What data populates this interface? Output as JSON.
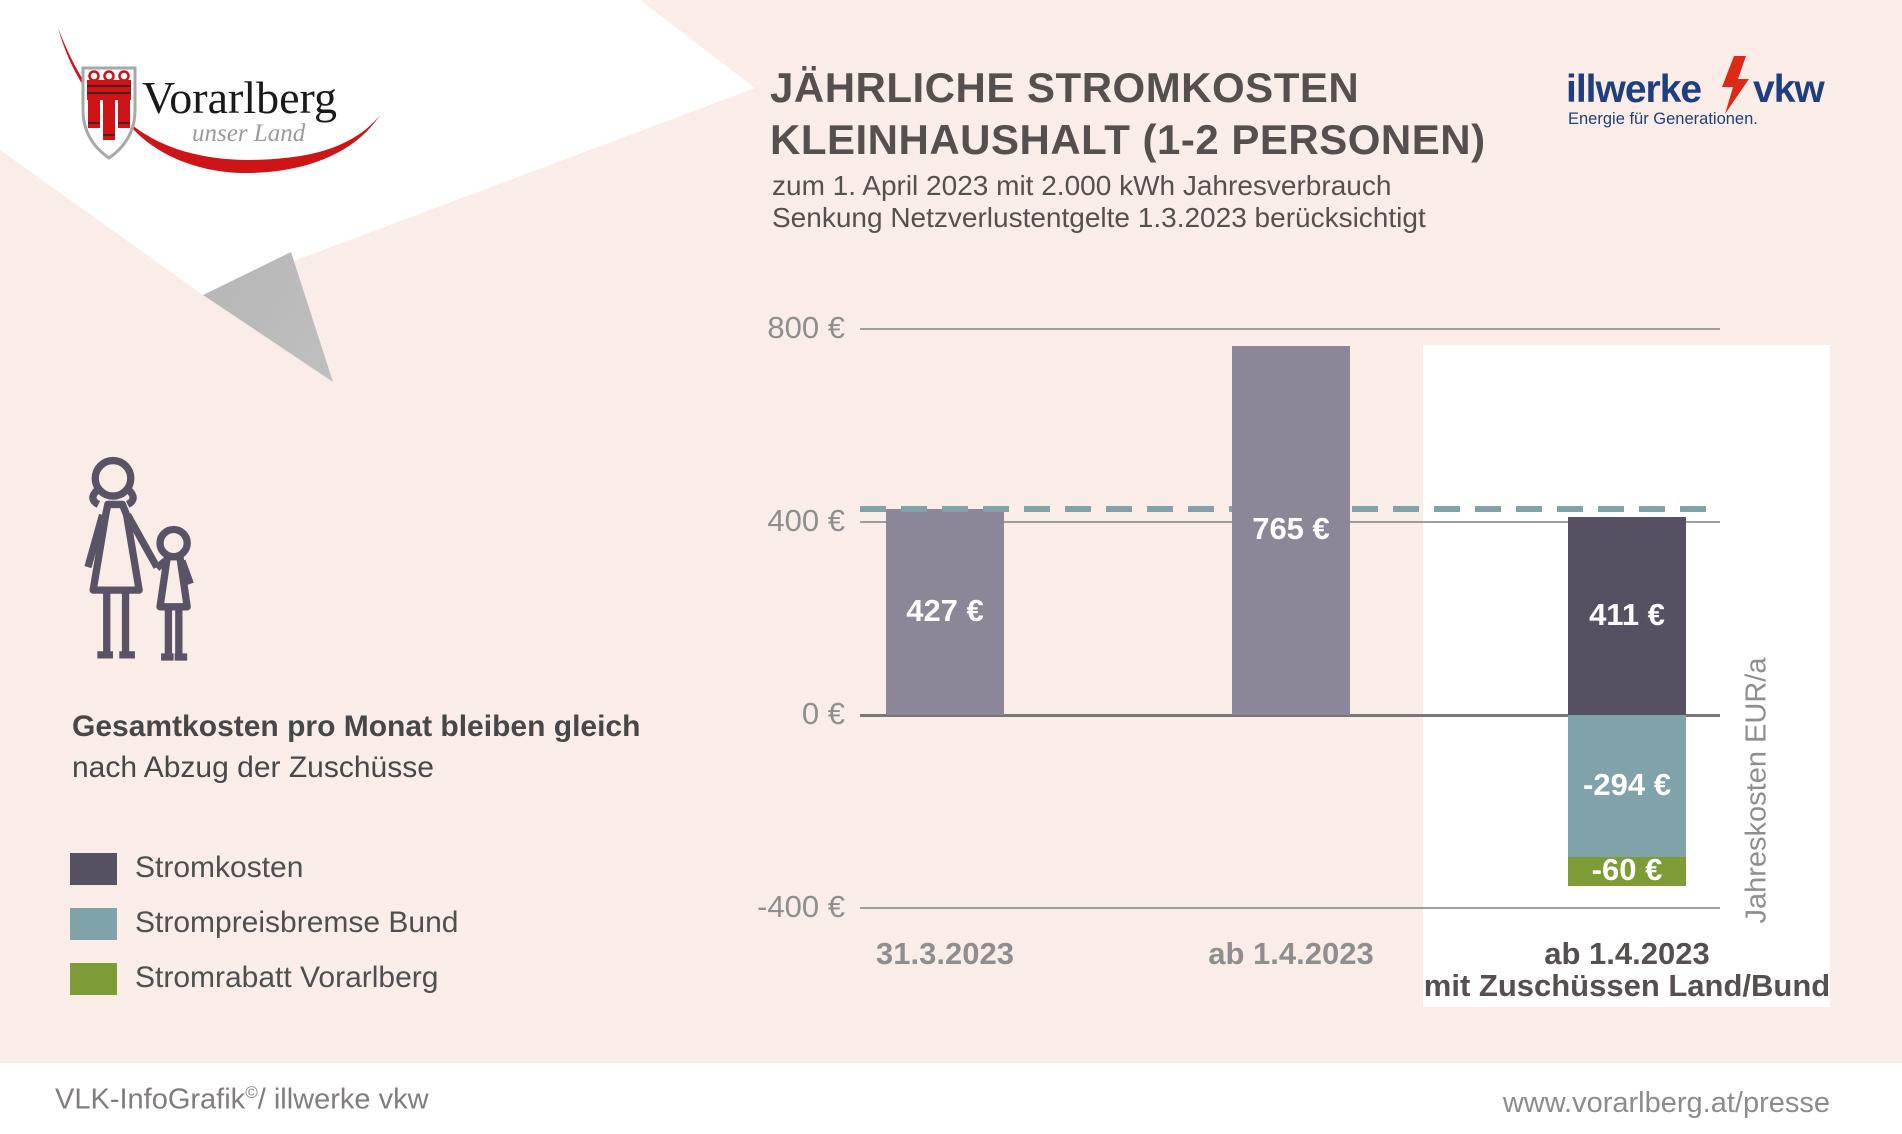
{
  "header": {
    "title_line1": "JÄHRLICHE STROMKOSTEN",
    "title_line2": "KLEINHAUSHALT (1-2 PERSONEN)",
    "subtitle_line1": "zum 1. April 2023 mit 2.000 kWh Jahresverbrauch",
    "subtitle_line2": "Senkung Netzverlustentgelte 1.3.2023 berücksichtigt"
  },
  "logos": {
    "vorarlberg": {
      "name": "Vorarlberg",
      "tagline": "unser Land"
    },
    "illwerke_vkw": {
      "name_part1": "illwerke",
      "name_part2": "vkw",
      "tagline": "Energie für Generationen."
    }
  },
  "left_panel": {
    "note_bold": "Gesamtkosten pro Monat bleiben gleich",
    "note_regular": "nach Abzug der Zuschüsse",
    "legend": [
      {
        "label": "Stromkosten",
        "color": "#575063"
      },
      {
        "label": "Strompreisbremse Bund",
        "color": "#7fa3a9"
      },
      {
        "label": "Stromrabatt Vorarlberg",
        "color": "#7d9c36"
      }
    ]
  },
  "chart_data": {
    "type": "bar",
    "title": "Jährliche Stromkosten Kleinhaushalt (1-2 Personen)",
    "ylabel": "Jahreskosten EUR/a",
    "ylim": [
      -400,
      800
    ],
    "grid": true,
    "yticks": [
      {
        "label": "800 €",
        "value": 800
      },
      {
        "label": "400 €",
        "value": 400
      },
      {
        "label": "0 €",
        "value": 0
      },
      {
        "label": "-400 €",
        "value": -400
      }
    ],
    "reference_line": {
      "value": 427,
      "style": "dashed",
      "color": "#7fa3a9"
    },
    "categories": [
      "31.3.2023",
      "ab 1.4.2023",
      "ab 1.4.2023 mit Zuschüssen Land/Bund"
    ],
    "series": [
      {
        "name": "Stromkosten",
        "values": [
          427,
          765,
          411
        ]
      },
      {
        "name": "Strompreisbremse Bund",
        "values": [
          0,
          0,
          -294
        ]
      },
      {
        "name": "Stromrabatt Vorarlberg",
        "values": [
          0,
          0,
          -60
        ]
      }
    ],
    "bars": [
      {
        "category_lines": [
          "31.3.2023"
        ],
        "emphasis": false,
        "segments": [
          {
            "series": "Stromkosten",
            "value": 427,
            "label": "427 €",
            "color": "#8d8598"
          }
        ]
      },
      {
        "category_lines": [
          "ab 1.4.2023"
        ],
        "emphasis": false,
        "segments": [
          {
            "series": "Stromkosten",
            "value": 765,
            "label": "765 €",
            "color": "#8d8598"
          }
        ]
      },
      {
        "category_lines": [
          "ab 1.4.2023",
          "mit Zuschüssen Land/Bund"
        ],
        "emphasis": true,
        "segments": [
          {
            "series": "Stromkosten",
            "value": 411,
            "label": "411 €",
            "color": "#575063"
          },
          {
            "series": "Strompreisbremse Bund",
            "value": -294,
            "label": "-294 €",
            "color": "#7fa3a9"
          },
          {
            "series": "Stromrabatt Vorarlberg",
            "value": -60,
            "label": "-60 €",
            "color": "#7d9c36"
          }
        ]
      }
    ]
  },
  "footer": {
    "left_main": "VLK-InfoGrafik",
    "left_sup": "©",
    "left_rest": "/ illwerke vkw",
    "right": "www.vorarlberg.at/presse"
  },
  "colors": {
    "background": "#faede8",
    "panel": "#ffffff",
    "bar_light": "#8d8598",
    "bar_dark": "#575063",
    "teal": "#7fa3a9",
    "green": "#7d9c36",
    "gridline": "#9d9d9d",
    "zero_line": "#777777",
    "axis_text": "#8e8e8e",
    "title_text": "#55504e",
    "logo_blue": "#1f3e7d",
    "logo_red": "#cf1418",
    "bolt_red": "#dc2a1a",
    "icon_outline": "#5a5366"
  }
}
